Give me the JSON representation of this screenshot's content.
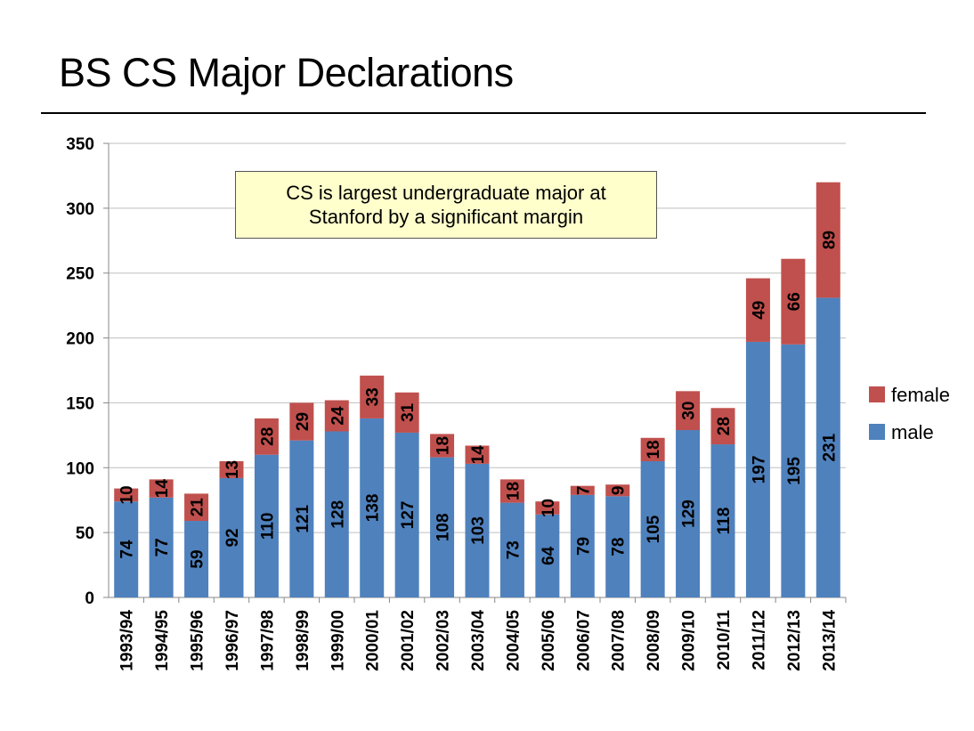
{
  "slide": {
    "title": "BS CS Major Declarations"
  },
  "callout": {
    "line1": "CS is largest undergraduate major at",
    "line2": "Stanford by a significant margin"
  },
  "chart_data": {
    "type": "bar",
    "stacked": true,
    "title": "",
    "xlabel": "",
    "ylabel": "",
    "ylim": [
      0,
      350
    ],
    "yticks": [
      0,
      50,
      100,
      150,
      200,
      250,
      300,
      350
    ],
    "grid": true,
    "legend_position": "right",
    "categories": [
      "1993/94",
      "1994/95",
      "1995/96",
      "1996/97",
      "1997/98",
      "1998/99",
      "1999/00",
      "2000/01",
      "2001/02",
      "2002/03",
      "2003/04",
      "2004/05",
      "2005/06",
      "2006/07",
      "2007/08",
      "2008/09",
      "2009/10",
      "2010/11",
      "2011/12",
      "2012/13",
      "2013/14"
    ],
    "series": [
      {
        "name": "male",
        "color": "#4f81bd",
        "values": [
          74,
          77,
          59,
          92,
          110,
          121,
          128,
          138,
          127,
          108,
          103,
          73,
          64,
          79,
          78,
          105,
          129,
          118,
          197,
          195,
          231
        ]
      },
      {
        "name": "female",
        "color": "#c0504d",
        "values": [
          10,
          14,
          21,
          13,
          28,
          29,
          24,
          33,
          31,
          18,
          14,
          18,
          10,
          7,
          9,
          18,
          30,
          28,
          49,
          66,
          89
        ]
      }
    ],
    "legend": [
      "female",
      "male"
    ]
  }
}
